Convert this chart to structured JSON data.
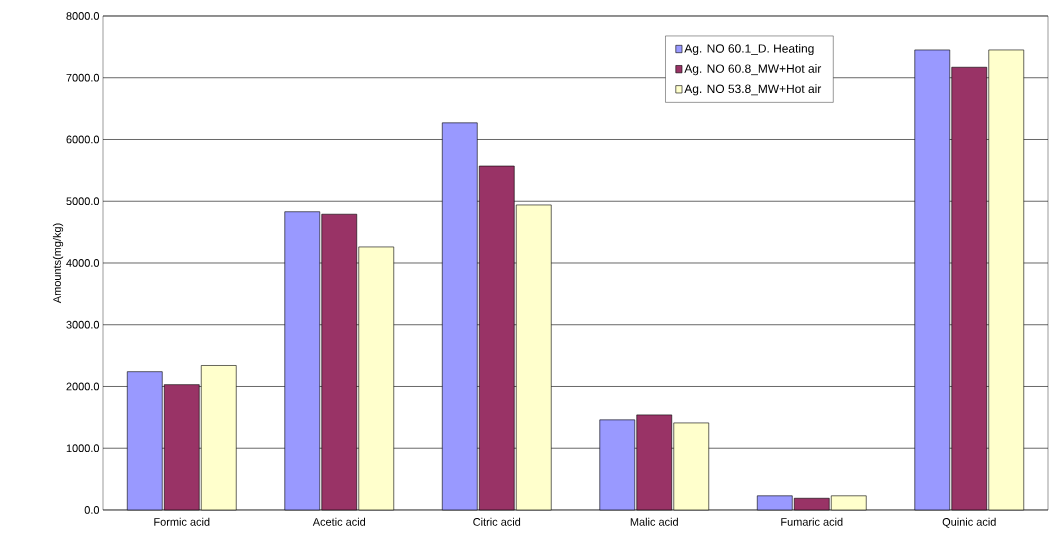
{
  "chart_data": {
    "type": "bar",
    "ylabel": "Amounts(mg/kg)",
    "categories": [
      "Formic acid",
      "Acetic acid",
      "Citric acid",
      "Malic acid",
      "Fumaric acid",
      "Quinic acid"
    ],
    "series": [
      {
        "name": "Ag. NO 60.1_D. Heating",
        "color": "#9999ff",
        "values": [
          2240,
          4830,
          6270,
          1460,
          230,
          7450
        ]
      },
      {
        "name": "Ag. NO 60.8_MW+Hot air",
        "color": "#993366",
        "values": [
          2030,
          4790,
          5570,
          1540,
          190,
          7170
        ]
      },
      {
        "name": "Ag. NO 53.8_MW+Hot air",
        "color": "#ffffcc",
        "values": [
          2340,
          4260,
          4940,
          1410,
          230,
          7450
        ]
      }
    ],
    "ylim": [
      0,
      8000
    ],
    "yticks": [
      {
        "value": 0,
        "label": "0.0"
      },
      {
        "value": 1000,
        "label": "1000.0"
      },
      {
        "value": 2000,
        "label": "2000.0"
      },
      {
        "value": 3000,
        "label": "3000.0"
      },
      {
        "value": 4000,
        "label": "4000.0"
      },
      {
        "value": 5000,
        "label": "5000.0"
      },
      {
        "value": 6000,
        "label": "6000.0"
      },
      {
        "value": 7000,
        "label": "7000.0"
      },
      {
        "value": 8000,
        "label": "8000.0"
      }
    ],
    "grid": "y",
    "legend": "top"
  }
}
